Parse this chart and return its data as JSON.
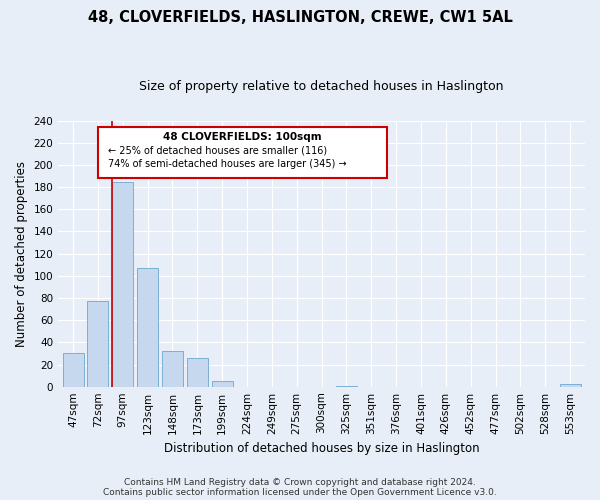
{
  "title": "48, CLOVERFIELDS, HASLINGTON, CREWE, CW1 5AL",
  "subtitle": "Size of property relative to detached houses in Haslington",
  "xlabel": "Distribution of detached houses by size in Haslington",
  "ylabel": "Number of detached properties",
  "bar_labels": [
    "47sqm",
    "72sqm",
    "97sqm",
    "123sqm",
    "148sqm",
    "173sqm",
    "199sqm",
    "224sqm",
    "249sqm",
    "275sqm",
    "300sqm",
    "325sqm",
    "351sqm",
    "376sqm",
    "401sqm",
    "426sqm",
    "452sqm",
    "477sqm",
    "502sqm",
    "528sqm",
    "553sqm"
  ],
  "bar_values": [
    30,
    77,
    185,
    107,
    32,
    26,
    5,
    0,
    0,
    0,
    0,
    1,
    0,
    0,
    0,
    0,
    0,
    0,
    0,
    0,
    2
  ],
  "bar_color": "#c5d8ee",
  "bar_edge_color": "#7bafd4",
  "vline_x_index": 2,
  "vline_color": "#cc0000",
  "ylim": [
    0,
    240
  ],
  "yticks": [
    0,
    20,
    40,
    60,
    80,
    100,
    120,
    140,
    160,
    180,
    200,
    220,
    240
  ],
  "annotation_title": "48 CLOVERFIELDS: 100sqm",
  "annotation_line1": "← 25% of detached houses are smaller (116)",
  "annotation_line2": "74% of semi-detached houses are larger (345) →",
  "annotation_box_color": "#ffffff",
  "annotation_box_edge": "#cc0000",
  "footer_line1": "Contains HM Land Registry data © Crown copyright and database right 2024.",
  "footer_line2": "Contains public sector information licensed under the Open Government Licence v3.0.",
  "bg_color": "#e8eef7",
  "plot_bg_color": "#e8eef7",
  "title_fontsize": 10.5,
  "subtitle_fontsize": 9,
  "axis_label_fontsize": 8.5,
  "tick_fontsize": 7.5,
  "footer_fontsize": 6.5,
  "grid_color": "#ffffff"
}
